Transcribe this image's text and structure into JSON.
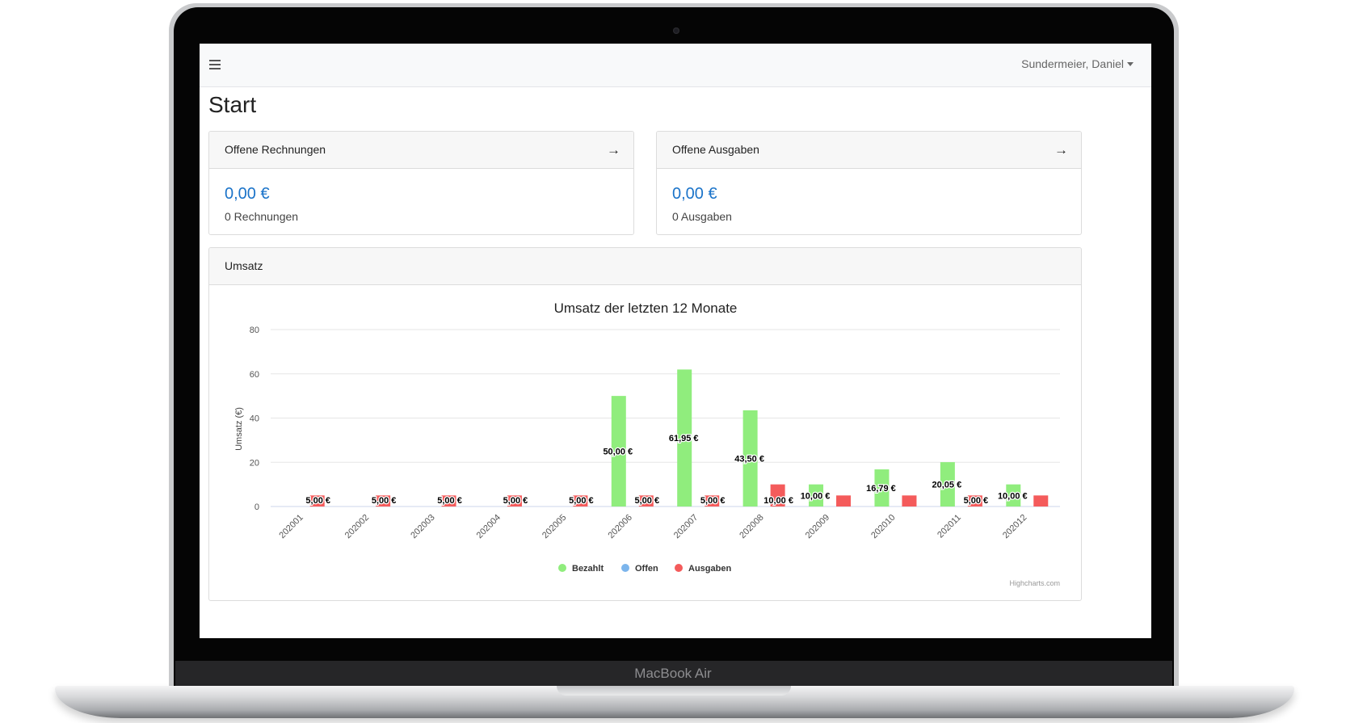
{
  "device": {
    "label": "MacBook Air"
  },
  "navbar": {
    "user_name": "Sundermeier, Daniel"
  },
  "page": {
    "title": "Start"
  },
  "cards": {
    "invoices": {
      "header": "Offene Rechnungen",
      "amount": "0,00 €",
      "count": "0 Rechnungen"
    },
    "expenses": {
      "header": "Offene Ausgaben",
      "amount": "0,00 €",
      "count": "0 Ausgaben"
    }
  },
  "revenue_card": {
    "header": "Umsatz",
    "credit": "Highcharts.com"
  },
  "colors": {
    "paid": "#90ed7d",
    "open": "#7cb5ec",
    "expenses": "#f45b5b",
    "accent": "#1a73c9"
  },
  "chart_data": {
    "type": "bar",
    "title": "Umsatz der letzten 12 Monate",
    "ylabel": "Umsatz (€)",
    "xlabel": "",
    "ylim": [
      0,
      80
    ],
    "yticks": [
      0,
      20,
      40,
      60,
      80
    ],
    "categories": [
      "202001",
      "202002",
      "202003",
      "202004",
      "202005",
      "202006",
      "202007",
      "202008",
      "202009",
      "202010",
      "202011",
      "202012"
    ],
    "series": [
      {
        "name": "Bezahlt",
        "color": "#90ed7d",
        "values": [
          0,
          0,
          0,
          0,
          0,
          50.0,
          61.95,
          43.5,
          10.0,
          16.79,
          20.05,
          10.0
        ],
        "labels": [
          "",
          "",
          "",
          "",
          "",
          "50,00 €",
          "61,95 €",
          "43,50 €",
          "10,00 €",
          "16,79 €",
          "20,05 €",
          "10,00 €"
        ]
      },
      {
        "name": "Offen",
        "color": "#7cb5ec",
        "values": [
          0,
          0,
          0,
          0,
          0,
          0,
          0,
          0,
          0,
          0,
          0,
          0
        ],
        "labels": [
          "",
          "",
          "",
          "",
          "",
          "",
          "",
          "",
          "",
          "",
          "",
          ""
        ]
      },
      {
        "name": "Ausgaben",
        "color": "#f45b5b",
        "values": [
          5.0,
          5.0,
          5.0,
          5.0,
          5.0,
          5.0,
          5.0,
          10.0,
          5.0,
          5.0,
          5.0,
          5.0
        ],
        "labels": [
          "5,00 €",
          "5,00 €",
          "5,00 €",
          "5,00 €",
          "5,00 €",
          "5,00 €",
          "5,00 €",
          "10,00 €",
          "",
          "",
          "5,00 €",
          ""
        ]
      }
    ],
    "legend": "bottom-center",
    "grid": true
  }
}
